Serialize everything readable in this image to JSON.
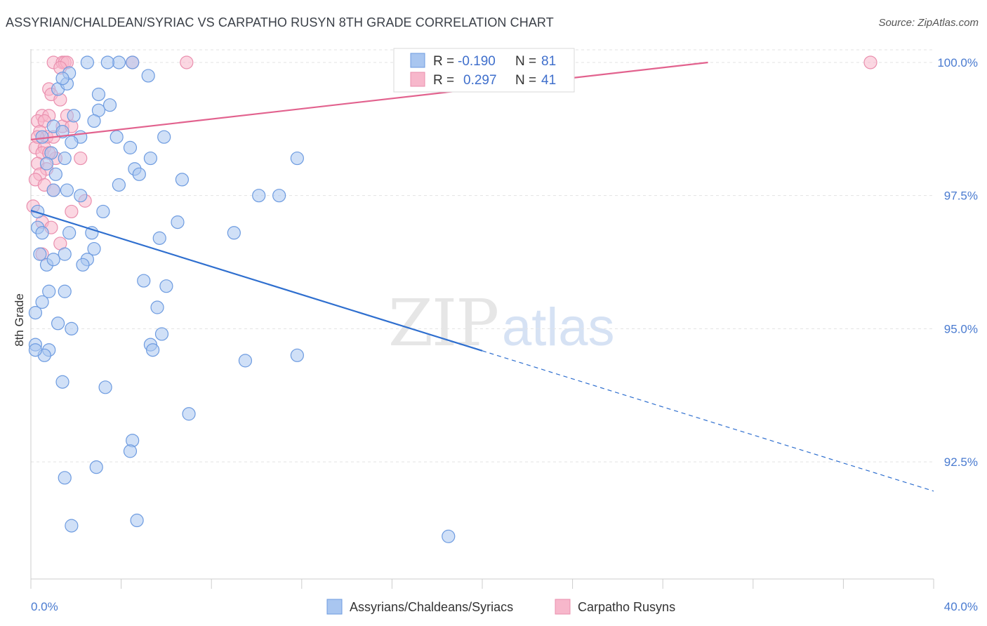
{
  "title": "ASSYRIAN/CHALDEAN/SYRIAC VS CARPATHO RUSYN 8TH GRADE CORRELATION CHART",
  "source": "Source: ZipAtlas.com",
  "watermark": {
    "zip": "ZIP",
    "atlas": "atlas"
  },
  "colors": {
    "blue_fill": "#a9c6f0",
    "blue_stroke": "#6d9be0",
    "blue_line": "#2f6fcf",
    "pink_fill": "#f7b7cb",
    "pink_stroke": "#ea8fae",
    "pink_line": "#e2628e",
    "tick_text": "#4a7bd0",
    "grid": "#e3e3e3"
  },
  "legend": {
    "r_label": "R =",
    "n_label": "N =",
    "entries": [
      {
        "r": "-0.190",
        "n": "81"
      },
      {
        "r": "0.297",
        "n": "41"
      }
    ]
  },
  "chart_data": {
    "type": "scatter",
    "title": "ASSYRIAN/CHALDEAN/SYRIAC VS CARPATHO RUSYN 8TH GRADE CORRELATION CHART",
    "xlabel": "",
    "ylabel": "8th Grade",
    "xlim": [
      0,
      40
    ],
    "ylim": [
      90.3,
      100.25
    ],
    "x_tick_labels": [
      "0.0%",
      "40.0%"
    ],
    "y_ticks": [
      92.5,
      95.0,
      97.5,
      100.0
    ],
    "y_tick_labels": [
      "92.5%",
      "95.0%",
      "97.5%",
      "100.0%"
    ],
    "grid": "horizontal dashed",
    "legend_position": "top-center",
    "series": [
      {
        "name": "Assyrians/Chaldeans/Syriacs",
        "r": -0.19,
        "n": 81,
        "trend": {
          "x0": 0.0,
          "y0": 97.22,
          "x1_solid": 20.0,
          "x1": 40.0,
          "y1": 91.95
        },
        "points": [
          [
            1.2,
            99.5
          ],
          [
            1.0,
            98.8
          ],
          [
            1.6,
            99.6
          ],
          [
            1.7,
            99.8
          ],
          [
            1.4,
            99.7
          ],
          [
            2.5,
            100.0
          ],
          [
            3.9,
            100.0
          ],
          [
            4.5,
            100.0
          ],
          [
            3.4,
            100.0
          ],
          [
            5.2,
            99.75
          ],
          [
            3.0,
            99.4
          ],
          [
            1.9,
            99.0
          ],
          [
            3.5,
            99.2
          ],
          [
            1.4,
            98.7
          ],
          [
            2.2,
            98.6
          ],
          [
            1.8,
            98.5
          ],
          [
            3.8,
            98.6
          ],
          [
            5.9,
            98.6
          ],
          [
            4.4,
            98.4
          ],
          [
            0.9,
            98.3
          ],
          [
            1.5,
            98.2
          ],
          [
            1.1,
            97.9
          ],
          [
            1.6,
            97.6
          ],
          [
            0.7,
            98.1
          ],
          [
            1.0,
            97.6
          ],
          [
            2.2,
            97.5
          ],
          [
            4.6,
            98.0
          ],
          [
            4.8,
            97.9
          ],
          [
            3.9,
            97.7
          ],
          [
            5.3,
            98.2
          ],
          [
            6.7,
            97.8
          ],
          [
            11.0,
            97.5
          ],
          [
            10.1,
            97.5
          ],
          [
            11.8,
            98.2
          ],
          [
            0.5,
            98.6
          ],
          [
            0.3,
            97.2
          ],
          [
            3.2,
            97.2
          ],
          [
            6.5,
            97.0
          ],
          [
            0.3,
            96.9
          ],
          [
            0.5,
            96.8
          ],
          [
            1.7,
            96.8
          ],
          [
            2.7,
            96.8
          ],
          [
            2.8,
            96.5
          ],
          [
            2.5,
            96.3
          ],
          [
            1.5,
            96.4
          ],
          [
            0.4,
            96.4
          ],
          [
            0.7,
            96.2
          ],
          [
            1.0,
            96.3
          ],
          [
            2.3,
            96.2
          ],
          [
            9.0,
            96.8
          ],
          [
            5.7,
            96.7
          ],
          [
            5.0,
            95.9
          ],
          [
            6.0,
            95.8
          ],
          [
            0.8,
            95.7
          ],
          [
            1.5,
            95.7
          ],
          [
            0.5,
            95.5
          ],
          [
            5.6,
            95.4
          ],
          [
            0.2,
            95.3
          ],
          [
            1.2,
            95.1
          ],
          [
            1.8,
            95.0
          ],
          [
            5.8,
            94.9
          ],
          [
            5.3,
            94.7
          ],
          [
            5.4,
            94.6
          ],
          [
            0.2,
            94.7
          ],
          [
            0.8,
            94.6
          ],
          [
            0.6,
            94.5
          ],
          [
            9.5,
            94.4
          ],
          [
            11.8,
            94.5
          ],
          [
            1.4,
            94.0
          ],
          [
            3.3,
            93.9
          ],
          [
            7.0,
            93.4
          ],
          [
            4.5,
            92.9
          ],
          [
            4.4,
            92.7
          ],
          [
            2.9,
            92.4
          ],
          [
            1.5,
            92.2
          ],
          [
            4.7,
            91.4
          ],
          [
            1.8,
            91.3
          ],
          [
            18.5,
            91.1
          ],
          [
            0.2,
            94.6
          ],
          [
            3.0,
            99.1
          ],
          [
            2.8,
            98.9
          ]
        ]
      },
      {
        "name": "Carpatho Rusyns",
        "r": 0.297,
        "n": 41,
        "trend": {
          "x0": 0.0,
          "y0": 98.55,
          "x1": 30.0,
          "y1": 100.0
        },
        "points": [
          [
            1.0,
            100.0
          ],
          [
            1.4,
            100.0
          ],
          [
            1.5,
            100.0
          ],
          [
            1.6,
            100.0
          ],
          [
            4.5,
            100.0
          ],
          [
            6.9,
            100.0
          ],
          [
            37.2,
            100.0
          ],
          [
            1.3,
            99.9
          ],
          [
            0.8,
            99.5
          ],
          [
            0.9,
            99.4
          ],
          [
            1.3,
            99.3
          ],
          [
            0.5,
            99.0
          ],
          [
            0.8,
            99.0
          ],
          [
            0.3,
            98.9
          ],
          [
            0.6,
            98.9
          ],
          [
            1.4,
            98.8
          ],
          [
            1.8,
            98.8
          ],
          [
            0.4,
            98.7
          ],
          [
            0.7,
            98.6
          ],
          [
            1.0,
            98.6
          ],
          [
            0.2,
            98.4
          ],
          [
            0.6,
            98.4
          ],
          [
            0.5,
            98.3
          ],
          [
            1.1,
            98.2
          ],
          [
            0.3,
            98.1
          ],
          [
            0.7,
            98.0
          ],
          [
            2.2,
            98.2
          ],
          [
            0.4,
            97.9
          ],
          [
            0.2,
            97.8
          ],
          [
            0.6,
            97.7
          ],
          [
            1.0,
            97.6
          ],
          [
            2.4,
            97.4
          ],
          [
            0.1,
            97.3
          ],
          [
            1.8,
            97.2
          ],
          [
            0.5,
            97.0
          ],
          [
            0.9,
            96.9
          ],
          [
            1.3,
            96.6
          ],
          [
            0.5,
            96.4
          ],
          [
            0.3,
            98.6
          ],
          [
            1.6,
            99.0
          ],
          [
            0.8,
            98.3
          ]
        ]
      }
    ]
  }
}
